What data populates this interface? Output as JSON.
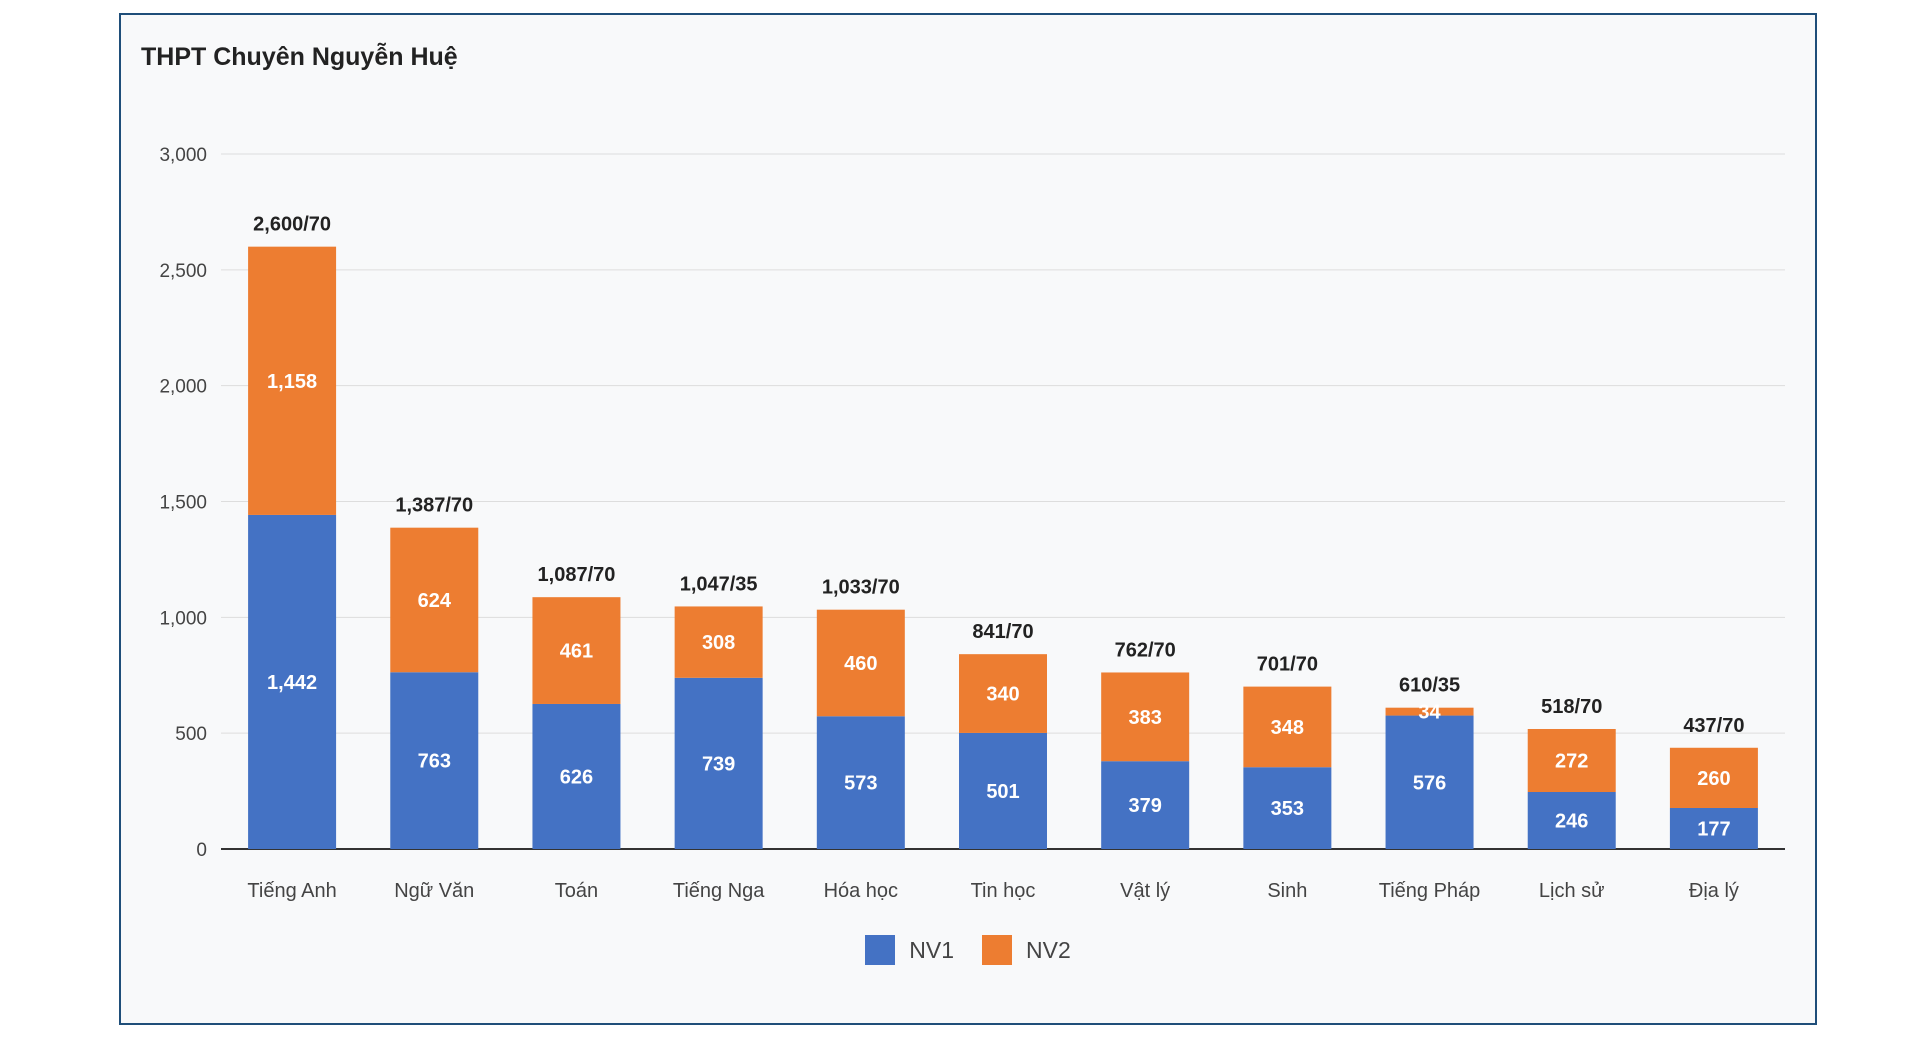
{
  "chart_data": {
    "type": "bar",
    "stacked": true,
    "title": "THPT Chuyên Nguyễn Huệ",
    "xlabel": "",
    "ylabel": "",
    "ylim": [
      0,
      3000
    ],
    "y_ticks": [
      "0",
      "500",
      "1,000",
      "1,500",
      "2,000",
      "2,500",
      "3,000"
    ],
    "grid": true,
    "legend_position": "bottom",
    "categories": [
      "Tiếng Anh",
      "Ngữ Văn",
      "Toán",
      "Tiếng Nga",
      "Hóa học",
      "Tin học",
      "Vật lý",
      "Sinh",
      "Tiếng Pháp",
      "Lịch sử",
      "Địa lý"
    ],
    "series": [
      {
        "name": "NV1",
        "color": "#4472c4",
        "values": [
          1442,
          763,
          626,
          739,
          573,
          501,
          379,
          353,
          576,
          246,
          177
        ],
        "labels": [
          "1,442",
          "763",
          "626",
          "739",
          "573",
          "501",
          "379",
          "353",
          "576",
          "246",
          "177"
        ]
      },
      {
        "name": "NV2",
        "color": "#ed7d31",
        "values": [
          1158,
          624,
          461,
          308,
          460,
          340,
          383,
          348,
          34,
          272,
          260
        ],
        "labels": [
          "1,158",
          "624",
          "461",
          "308",
          "460",
          "340",
          "383",
          "348",
          "34",
          "272",
          "260"
        ]
      }
    ],
    "total_labels": [
      "2,600/70",
      "1,387/70",
      "1,087/70",
      "1,047/35",
      "1,033/70",
      "841/70",
      "762/70",
      "701/70",
      "610/35",
      "518/70",
      "437/70"
    ]
  }
}
